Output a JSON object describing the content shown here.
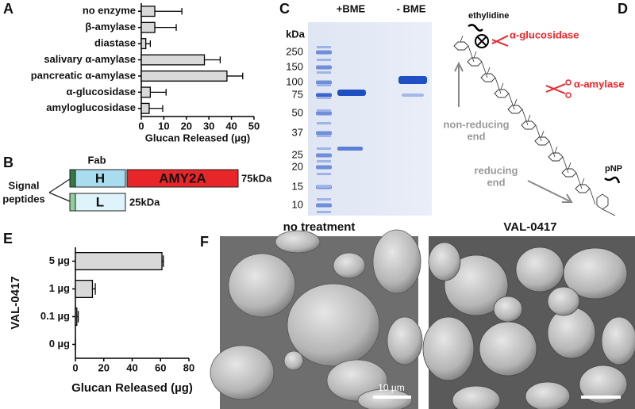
{
  "panel_labels": [
    "A",
    "B",
    "C",
    "D",
    "E",
    "F"
  ],
  "chart_data": [
    {
      "type": "bar",
      "orientation": "horizontal",
      "color": "#d9d9d9",
      "categories": [
        "no enzyme",
        "β-amylase",
        "diastase",
        "salivary α-amylase",
        "pancreatic α-amylase",
        "α-glucosidase",
        "amyloglucosidase"
      ],
      "values": [
        6,
        6,
        2,
        28,
        38,
        4,
        3.5
      ],
      "errors": [
        12,
        9.5,
        2,
        7,
        7,
        7,
        6
      ],
      "xlim": [
        0,
        50
      ],
      "xticks": [
        0,
        10,
        20,
        30,
        40,
        50
      ],
      "xlabel": "Glucan Released (µg)"
    },
    {
      "type": "bar",
      "orientation": "horizontal",
      "color": "#d9d9d9",
      "categories": [
        "5 µg",
        "1 µg",
        "0.1 µg",
        "0 µg"
      ],
      "values": [
        61,
        12,
        1,
        0
      ],
      "errors": [
        1,
        2,
        1,
        0
      ],
      "xlim": [
        0,
        80
      ],
      "xticks": [
        0,
        20,
        40,
        60,
        80
      ],
      "xlabel": "Glucan Released (µg)",
      "ylabel": "VAL-0417"
    }
  ],
  "construct": {
    "fab_label": "Fab",
    "heavy": "H",
    "light": "L",
    "fusion": "AMY2A",
    "heavy_mass": "75kDa",
    "light_mass": "25kDa",
    "signal_label": [
      "Signal",
      "peptides"
    ]
  },
  "gel": {
    "unit_label": "kDa",
    "lanes": [
      "+BME",
      "- BME"
    ],
    "ladder": [
      "250",
      "150",
      "100",
      "75",
      "50",
      "37",
      "25",
      "20",
      "15",
      "10"
    ]
  },
  "diagram": {
    "ethylidine": "ethylidine",
    "glucosidase": "α-glucosidase",
    "amylase": "α-amylase",
    "non_reducing": [
      "non-reducing",
      "end"
    ],
    "reducing": [
      "reducing",
      "end"
    ],
    "pnp": "pNP"
  },
  "sem": [
    {
      "title": "no treatment",
      "scale_label": "10 µm"
    },
    {
      "title": "VAL-0417"
    }
  ]
}
